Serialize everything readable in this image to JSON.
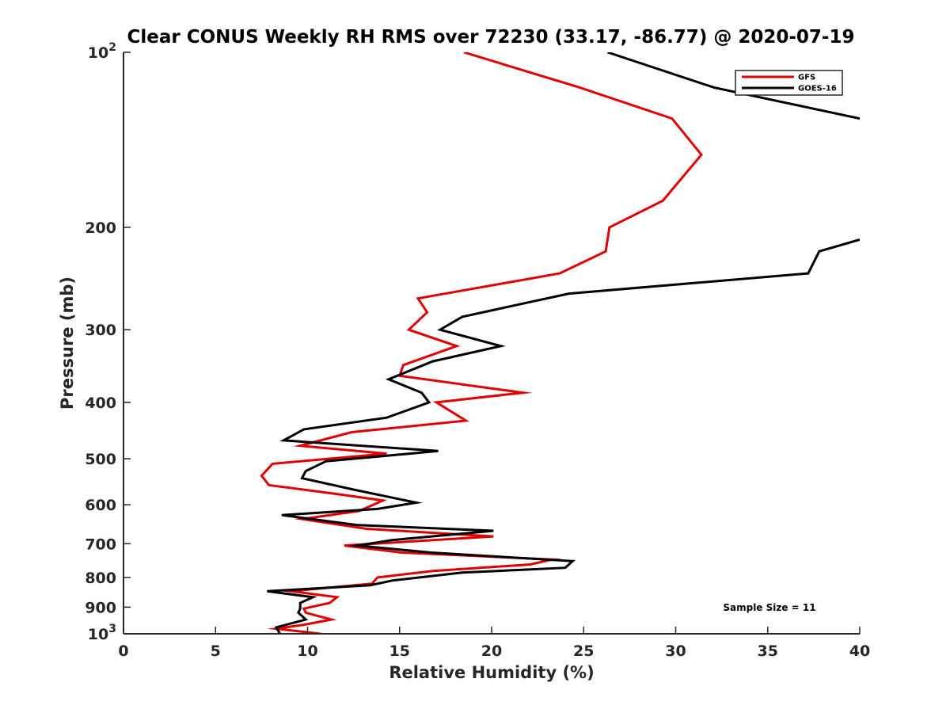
{
  "chart_data": {
    "type": "line",
    "title": "Clear CONUS Weekly RH RMS over 72230 (33.17, -86.77) @ 2020-07-19",
    "xlabel": "Relative Humidity (%)",
    "ylabel": "Pressure (mb)",
    "xlim": [
      0,
      40
    ],
    "ylim": [
      100,
      1000
    ],
    "yscale": "log",
    "y_reversed": true,
    "grid": false,
    "legend_position": "top-right",
    "x_ticks": [
      0,
      5,
      10,
      15,
      20,
      25,
      30,
      35,
      40
    ],
    "x_tick_labels": [
      "0",
      "5",
      "10",
      "15",
      "20",
      "25",
      "30",
      "35",
      "40"
    ],
    "y_ticks": [
      {
        "value": 100,
        "base": "10",
        "exp": "2"
      },
      {
        "value": 200,
        "label": "200"
      },
      {
        "value": 300,
        "label": "300"
      },
      {
        "value": 400,
        "label": "400"
      },
      {
        "value": 500,
        "label": "500"
      },
      {
        "value": 600,
        "label": "600"
      },
      {
        "value": 700,
        "label": "700"
      },
      {
        "value": 800,
        "label": "800"
      },
      {
        "value": 900,
        "label": "900"
      },
      {
        "value": 1000,
        "base": "10",
        "exp": "3"
      }
    ],
    "annotation": "Sample Size = 11",
    "series": [
      {
        "name": "GFS",
        "color": "#e00000",
        "points": [
          [
            18.5,
            100
          ],
          [
            24.8,
            115
          ],
          [
            29.8,
            130
          ],
          [
            31.4,
            150
          ],
          [
            29.3,
            180
          ],
          [
            26.4,
            200
          ],
          [
            26.2,
            220
          ],
          [
            23.7,
            240
          ],
          [
            16.0,
            265
          ],
          [
            16.5,
            280
          ],
          [
            15.5,
            300
          ],
          [
            18.1,
            320
          ],
          [
            15.2,
            345
          ],
          [
            15.0,
            360
          ],
          [
            21.7,
            385
          ],
          [
            17.0,
            400
          ],
          [
            18.6,
            430
          ],
          [
            12.4,
            450
          ],
          [
            9.6,
            475
          ],
          [
            14.3,
            490
          ],
          [
            8.1,
            510
          ],
          [
            7.5,
            535
          ],
          [
            7.9,
            555
          ],
          [
            11.6,
            575
          ],
          [
            14.1,
            590
          ],
          [
            12.8,
            615
          ],
          [
            9.7,
            635
          ],
          [
            13.2,
            660
          ],
          [
            20.1,
            680
          ],
          [
            12.0,
            705
          ],
          [
            15.1,
            725
          ],
          [
            23.3,
            745
          ],
          [
            22.1,
            760
          ],
          [
            16.8,
            780
          ],
          [
            13.8,
            800
          ],
          [
            13.5,
            820
          ],
          [
            9.1,
            845
          ],
          [
            11.6,
            865
          ],
          [
            11.2,
            885
          ],
          [
            9.8,
            905
          ],
          [
            9.9,
            920
          ],
          [
            11.3,
            945
          ],
          [
            9.8,
            965
          ],
          [
            8.3,
            980
          ],
          [
            10.7,
            1000
          ]
        ]
      },
      {
        "name": "GOES-16",
        "color": "#000000",
        "points": [
          [
            26.3,
            100
          ],
          [
            32.1,
            115
          ],
          [
            40.0,
            130
          ],
          [
            null,
            null
          ],
          [
            40.0,
            210
          ],
          [
            37.8,
            220
          ],
          [
            37.2,
            240
          ],
          [
            24.2,
            260
          ],
          [
            18.4,
            285
          ],
          [
            17.2,
            300
          ],
          [
            20.5,
            320
          ],
          [
            16.8,
            340
          ],
          [
            14.4,
            365
          ],
          [
            16.2,
            385
          ],
          [
            16.6,
            400
          ],
          [
            14.3,
            425
          ],
          [
            9.8,
            445
          ],
          [
            8.7,
            465
          ],
          [
            17.1,
            485
          ],
          [
            11.0,
            505
          ],
          [
            9.9,
            525
          ],
          [
            9.7,
            540
          ],
          [
            12.5,
            565
          ],
          [
            15.9,
            595
          ],
          [
            13.8,
            610
          ],
          [
            8.6,
            625
          ],
          [
            12.7,
            650
          ],
          [
            20.1,
            665
          ],
          [
            14.6,
            690
          ],
          [
            12.7,
            705
          ],
          [
            16.7,
            725
          ],
          [
            24.4,
            750
          ],
          [
            24.0,
            770
          ],
          [
            18.4,
            785
          ],
          [
            14.6,
            810
          ],
          [
            13.4,
            825
          ],
          [
            7.8,
            845
          ],
          [
            10.3,
            865
          ],
          [
            9.6,
            885
          ],
          [
            9.6,
            905
          ],
          [
            9.5,
            920
          ],
          [
            9.9,
            945
          ],
          [
            8.3,
            975
          ],
          [
            8.5,
            1000
          ]
        ]
      }
    ]
  }
}
